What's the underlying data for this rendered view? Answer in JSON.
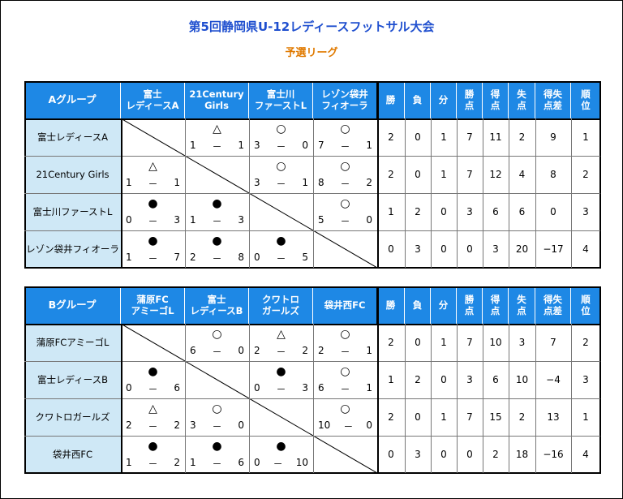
{
  "title": "第5回静岡県U-12レディースフットサル大会",
  "subtitle": "予選リーグ",
  "stat_headers": [
    [
      "勝"
    ],
    [
      "負"
    ],
    [
      "分"
    ],
    [
      "勝",
      "点"
    ],
    [
      "得",
      "点"
    ],
    [
      "失",
      "点"
    ],
    [
      "得失",
      "点差"
    ],
    [
      "順",
      "位"
    ]
  ],
  "colors": {
    "header": "#1e88e5",
    "team_bg": "#cfe8f6",
    "title": "#1f4fcf",
    "subtitle": "#e07a00"
  },
  "groups": [
    {
      "name": "Aグループ",
      "columns": [
        [
          "富士",
          "レディースA"
        ],
        [
          "21Century",
          "Girls"
        ],
        [
          "富士川",
          "ファーストL"
        ],
        [
          "レゾン袋井",
          "フィオーラ"
        ]
      ],
      "rows": [
        {
          "team": "富士レディースA",
          "results": [
            null,
            {
              "sym": "△",
              "l": "1",
              "r": "1"
            },
            {
              "sym": "○",
              "l": "3",
              "r": "0"
            },
            {
              "sym": "○",
              "l": "7",
              "r": "1"
            }
          ],
          "stats": [
            "2",
            "0",
            "1",
            "7",
            "11",
            "2",
            "9",
            "1"
          ]
        },
        {
          "team": "21Century Girls",
          "results": [
            {
              "sym": "△",
              "l": "1",
              "r": "1"
            },
            null,
            {
              "sym": "○",
              "l": "3",
              "r": "1"
            },
            {
              "sym": "○",
              "l": "8",
              "r": "2"
            }
          ],
          "stats": [
            "2",
            "0",
            "1",
            "7",
            "12",
            "4",
            "8",
            "2"
          ]
        },
        {
          "team": "富士川ファーストL",
          "results": [
            {
              "sym": "●",
              "l": "0",
              "r": "3"
            },
            {
              "sym": "●",
              "l": "1",
              "r": "3"
            },
            null,
            {
              "sym": "○",
              "l": "5",
              "r": "0"
            }
          ],
          "stats": [
            "1",
            "2",
            "0",
            "3",
            "6",
            "6",
            "0",
            "3"
          ]
        },
        {
          "team": "レゾン袋井フィオーラ",
          "results": [
            {
              "sym": "●",
              "l": "1",
              "r": "7"
            },
            {
              "sym": "●",
              "l": "2",
              "r": "8"
            },
            {
              "sym": "●",
              "l": "0",
              "r": "5"
            },
            null
          ],
          "stats": [
            "0",
            "3",
            "0",
            "0",
            "3",
            "20",
            "−17",
            "4"
          ]
        }
      ]
    },
    {
      "name": "Bグループ",
      "columns": [
        [
          "蒲原FC",
          "アミーゴL"
        ],
        [
          "富士",
          "レディースB"
        ],
        [
          "クワトロ",
          "ガールズ"
        ],
        [
          "袋井西FC"
        ]
      ],
      "rows": [
        {
          "team": "蒲原FCアミーゴL",
          "results": [
            null,
            {
              "sym": "○",
              "l": "6",
              "r": "0"
            },
            {
              "sym": "△",
              "l": "2",
              "r": "2"
            },
            {
              "sym": "○",
              "l": "2",
              "r": "1"
            }
          ],
          "stats": [
            "2",
            "0",
            "1",
            "7",
            "10",
            "3",
            "7",
            "2"
          ]
        },
        {
          "team": "富士レディースB",
          "results": [
            {
              "sym": "●",
              "l": "0",
              "r": "6"
            },
            null,
            {
              "sym": "●",
              "l": "0",
              "r": "3"
            },
            {
              "sym": "○",
              "l": "6",
              "r": "1"
            }
          ],
          "stats": [
            "1",
            "2",
            "0",
            "3",
            "6",
            "10",
            "−4",
            "3"
          ]
        },
        {
          "team": "クワトロガールズ",
          "results": [
            {
              "sym": "△",
              "l": "2",
              "r": "2"
            },
            {
              "sym": "○",
              "l": "3",
              "r": "0"
            },
            null,
            {
              "sym": "○",
              "l": "10",
              "r": "0"
            }
          ],
          "stats": [
            "2",
            "0",
            "1",
            "7",
            "15",
            "2",
            "13",
            "1"
          ]
        },
        {
          "team": "袋井西FC",
          "results": [
            {
              "sym": "●",
              "l": "1",
              "r": "2"
            },
            {
              "sym": "●",
              "l": "1",
              "r": "6"
            },
            {
              "sym": "●",
              "l": "0",
              "r": "10"
            },
            null
          ],
          "stats": [
            "0",
            "3",
            "0",
            "0",
            "2",
            "18",
            "−16",
            "4"
          ]
        }
      ]
    }
  ]
}
